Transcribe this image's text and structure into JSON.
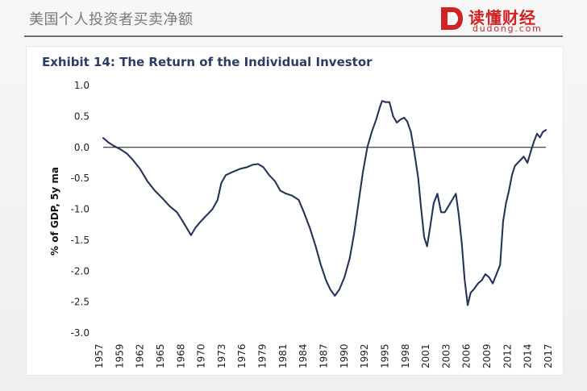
{
  "header": {
    "title": "美国个人投资者买卖净额"
  },
  "brand": {
    "name": "读懂财经",
    "domain": "dudong.com",
    "accent": "#d32222",
    "icon": "d-logo-icon"
  },
  "chart_data": {
    "type": "line",
    "title": "Exhibit 14: The Return of the Individual Investor",
    "ylabel": "% of GDP, 5y ma",
    "xlabel": "",
    "ylim": [
      -3.0,
      1.0
    ],
    "yticks": [
      "1.0",
      "0.5",
      "0.0",
      "-0.5",
      "-1.0",
      "-1.5",
      "-2.0",
      "-2.5",
      "-3.0"
    ],
    "xticks": [
      "1957",
      "1959",
      "1962",
      "1965",
      "1968",
      "1970",
      "1973",
      "1976",
      "1979",
      "1981",
      "1984",
      "1987",
      "1990",
      "1992",
      "1995",
      "1998",
      "2001",
      "2003",
      "2006",
      "2009",
      "2012",
      "2014",
      "2017"
    ],
    "series": [
      {
        "color": "#253459",
        "points": [
          [
            1957.0,
            0.15
          ],
          [
            1957.7,
            0.08
          ],
          [
            1958.5,
            0.02
          ],
          [
            1959.3,
            -0.03
          ],
          [
            1960.2,
            -0.1
          ],
          [
            1961.0,
            -0.2
          ],
          [
            1962.0,
            -0.35
          ],
          [
            1963.0,
            -0.55
          ],
          [
            1964.0,
            -0.7
          ],
          [
            1965.0,
            -0.82
          ],
          [
            1966.0,
            -0.95
          ],
          [
            1967.0,
            -1.05
          ],
          [
            1967.8,
            -1.2
          ],
          [
            1968.5,
            -1.34
          ],
          [
            1968.9,
            -1.42
          ],
          [
            1969.5,
            -1.3
          ],
          [
            1970.2,
            -1.2
          ],
          [
            1971.0,
            -1.1
          ],
          [
            1971.8,
            -1.0
          ],
          [
            1972.5,
            -0.85
          ],
          [
            1973.0,
            -0.58
          ],
          [
            1973.6,
            -0.45
          ],
          [
            1974.5,
            -0.4
          ],
          [
            1975.5,
            -0.35
          ],
          [
            1976.5,
            -0.32
          ],
          [
            1977.3,
            -0.28
          ],
          [
            1978.0,
            -0.27
          ],
          [
            1978.7,
            -0.32
          ],
          [
            1979.5,
            -0.45
          ],
          [
            1980.3,
            -0.55
          ],
          [
            1981.0,
            -0.7
          ],
          [
            1981.8,
            -0.75
          ],
          [
            1982.6,
            -0.78
          ],
          [
            1983.5,
            -0.85
          ],
          [
            1984.2,
            -1.05
          ],
          [
            1985.0,
            -1.3
          ],
          [
            1985.8,
            -1.6
          ],
          [
            1986.5,
            -1.9
          ],
          [
            1987.2,
            -2.15
          ],
          [
            1987.8,
            -2.3
          ],
          [
            1988.4,
            -2.4
          ],
          [
            1989.0,
            -2.3
          ],
          [
            1989.7,
            -2.1
          ],
          [
            1990.4,
            -1.8
          ],
          [
            1991.0,
            -1.4
          ],
          [
            1991.6,
            -0.9
          ],
          [
            1992.2,
            -0.4
          ],
          [
            1992.8,
            0.0
          ],
          [
            1993.4,
            0.25
          ],
          [
            1994.0,
            0.45
          ],
          [
            1994.5,
            0.65
          ],
          [
            1994.8,
            0.75
          ],
          [
            1995.3,
            0.73
          ],
          [
            1995.8,
            0.73
          ],
          [
            1996.3,
            0.5
          ],
          [
            1996.8,
            0.4
          ],
          [
            1997.3,
            0.45
          ],
          [
            1997.8,
            0.48
          ],
          [
            1998.2,
            0.42
          ],
          [
            1998.7,
            0.25
          ],
          [
            1999.2,
            -0.1
          ],
          [
            1999.7,
            -0.5
          ],
          [
            2000.1,
            -1.0
          ],
          [
            2000.5,
            -1.45
          ],
          [
            2000.9,
            -1.6
          ],
          [
            2001.3,
            -1.3
          ],
          [
            2001.8,
            -0.9
          ],
          [
            2002.3,
            -0.75
          ],
          [
            2002.8,
            -1.05
          ],
          [
            2003.3,
            -1.05
          ],
          [
            2003.8,
            -0.95
          ],
          [
            2004.3,
            -0.85
          ],
          [
            2004.8,
            -0.75
          ],
          [
            2005.2,
            -1.1
          ],
          [
            2005.6,
            -1.55
          ],
          [
            2006.0,
            -2.15
          ],
          [
            2006.4,
            -2.55
          ],
          [
            2006.8,
            -2.35
          ],
          [
            2007.2,
            -2.3
          ],
          [
            2007.8,
            -2.2
          ],
          [
            2008.3,
            -2.15
          ],
          [
            2008.8,
            -2.05
          ],
          [
            2009.3,
            -2.1
          ],
          [
            2009.8,
            -2.2
          ],
          [
            2010.3,
            -2.05
          ],
          [
            2010.8,
            -1.9
          ],
          [
            2011.2,
            -1.2
          ],
          [
            2011.6,
            -0.9
          ],
          [
            2012.0,
            -0.7
          ],
          [
            2012.4,
            -0.45
          ],
          [
            2012.8,
            -0.3
          ],
          [
            2013.2,
            -0.25
          ],
          [
            2013.6,
            -0.2
          ],
          [
            2014.0,
            -0.15
          ],
          [
            2014.5,
            -0.25
          ],
          [
            2015.0,
            -0.05
          ],
          [
            2015.4,
            0.1
          ],
          [
            2015.8,
            0.22
          ],
          [
            2016.2,
            0.16
          ],
          [
            2016.6,
            0.25
          ],
          [
            2017.0,
            0.28
          ]
        ]
      }
    ]
  }
}
